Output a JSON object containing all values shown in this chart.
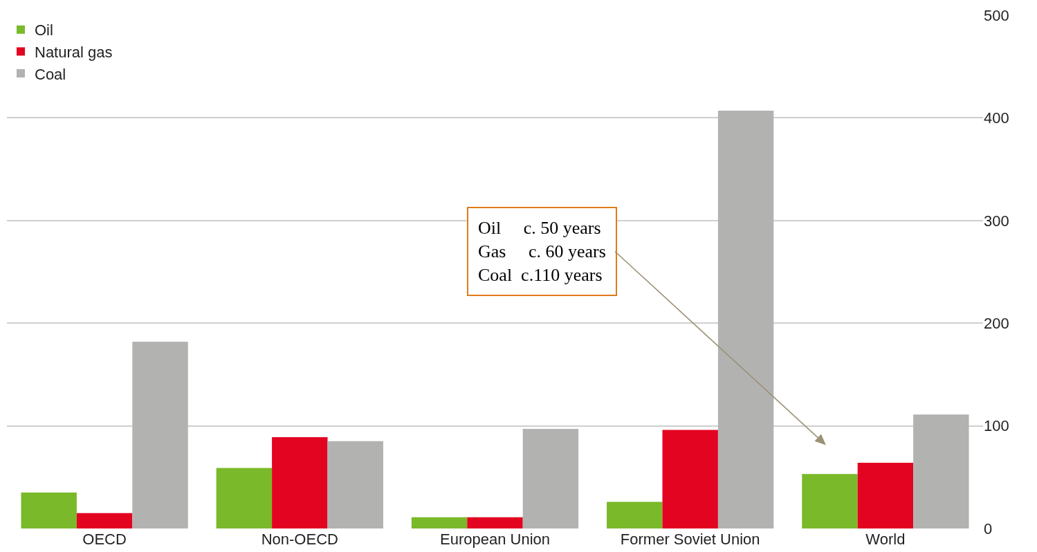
{
  "chart_data": {
    "type": "bar",
    "categories": [
      "OECD",
      "Non-OECD",
      "European Union",
      "Former Soviet Union",
      "World"
    ],
    "series": [
      {
        "name": "Oil",
        "color": "#7ab929",
        "values": [
          35,
          59,
          11,
          26,
          53
        ]
      },
      {
        "name": "Natural gas",
        "color": "#e30421",
        "values": [
          15,
          89,
          11,
          96,
          64
        ]
      },
      {
        "name": "Coal",
        "color": "#b2b2b1",
        "values": [
          182,
          85,
          97,
          407,
          111
        ]
      }
    ],
    "ylim": [
      0,
      500
    ],
    "yticks": [
      0,
      100,
      200,
      300,
      400,
      500
    ],
    "grid": "y",
    "legend": "top left",
    "annotations": [
      "Oil\tc. 50 years\nGas\tc. 60 years\nCoal\tc.110 years"
    ]
  }
}
